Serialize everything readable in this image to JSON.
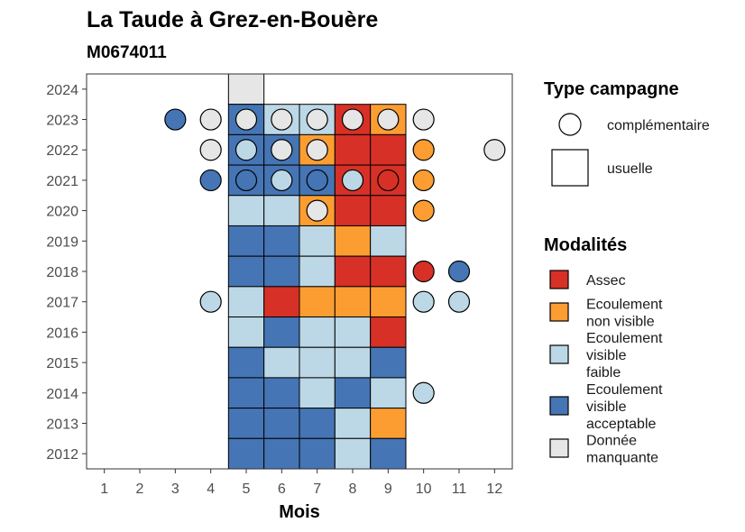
{
  "chart_data": {
    "type": "heatmap",
    "title": "La Taude à Grez-en-Bouère",
    "subtitle": "M0674011",
    "xlabel": "Mois",
    "ylabel": "",
    "x_ticks": [
      "1",
      "2",
      "3",
      "4",
      "5",
      "6",
      "7",
      "8",
      "9",
      "10",
      "11",
      "12"
    ],
    "y_ticks": [
      "2024",
      "2023",
      "2022",
      "2021",
      "2020",
      "2019",
      "2018",
      "2017",
      "2016",
      "2015",
      "2014",
      "2013",
      "2012"
    ],
    "xlim": [
      0.5,
      12.5
    ],
    "ylim": [
      2011.5,
      2024.5
    ],
    "grid": false,
    "legend_position": "right",
    "colors": {
      "Assec": "#d73027",
      "Ecoulement non visible": "#fc9d32",
      "Ecoulement visible faible": "#bcd8e6",
      "Ecoulement visible acceptable": "#4575b4",
      "Donnée manquante": "#e6e6e6"
    },
    "legend_shape": {
      "title": "Type campagne",
      "items": [
        {
          "key": "complementaire",
          "label": "complémentaire",
          "shape": "circle"
        },
        {
          "key": "usuelle",
          "label": "usuelle",
          "shape": "square"
        }
      ]
    },
    "legend_fill": {
      "title": "Modalités",
      "items": [
        {
          "key": "Assec",
          "lines": [
            "Assec"
          ]
        },
        {
          "key": "Ecoulement non visible",
          "lines": [
            "Ecoulement",
            "non visible"
          ]
        },
        {
          "key": "Ecoulement visible faible",
          "lines": [
            "Ecoulement",
            "visible",
            "faible"
          ]
        },
        {
          "key": "Ecoulement visible acceptable",
          "lines": [
            "Ecoulement",
            "visible",
            "acceptable"
          ]
        },
        {
          "key": "Donnée manquante",
          "lines": [
            "Donnée",
            "manquante"
          ]
        }
      ]
    },
    "usuelle": [
      {
        "year": 2024,
        "month": 5,
        "mod": "Donnée manquante"
      },
      {
        "year": 2023,
        "month": 5,
        "mod": "Ecoulement visible acceptable"
      },
      {
        "year": 2023,
        "month": 6,
        "mod": "Ecoulement visible faible"
      },
      {
        "year": 2023,
        "month": 7,
        "mod": "Ecoulement visible faible"
      },
      {
        "year": 2023,
        "month": 8,
        "mod": "Assec"
      },
      {
        "year": 2023,
        "month": 9,
        "mod": "Ecoulement non visible"
      },
      {
        "year": 2022,
        "month": 5,
        "mod": "Ecoulement visible acceptable"
      },
      {
        "year": 2022,
        "month": 6,
        "mod": "Ecoulement visible acceptable"
      },
      {
        "year": 2022,
        "month": 7,
        "mod": "Ecoulement non visible"
      },
      {
        "year": 2022,
        "month": 8,
        "mod": "Assec"
      },
      {
        "year": 2022,
        "month": 9,
        "mod": "Assec"
      },
      {
        "year": 2021,
        "month": 5,
        "mod": "Ecoulement visible acceptable"
      },
      {
        "year": 2021,
        "month": 6,
        "mod": "Ecoulement visible acceptable"
      },
      {
        "year": 2021,
        "month": 7,
        "mod": "Ecoulement visible acceptable"
      },
      {
        "year": 2021,
        "month": 8,
        "mod": "Assec"
      },
      {
        "year": 2021,
        "month": 9,
        "mod": "Assec"
      },
      {
        "year": 2020,
        "month": 5,
        "mod": "Ecoulement visible faible"
      },
      {
        "year": 2020,
        "month": 6,
        "mod": "Ecoulement visible faible"
      },
      {
        "year": 2020,
        "month": 7,
        "mod": "Ecoulement non visible"
      },
      {
        "year": 2020,
        "month": 8,
        "mod": "Assec"
      },
      {
        "year": 2020,
        "month": 9,
        "mod": "Assec"
      },
      {
        "year": 2019,
        "month": 5,
        "mod": "Ecoulement visible acceptable"
      },
      {
        "year": 2019,
        "month": 6,
        "mod": "Ecoulement visible acceptable"
      },
      {
        "year": 2019,
        "month": 7,
        "mod": "Ecoulement visible faible"
      },
      {
        "year": 2019,
        "month": 8,
        "mod": "Ecoulement non visible"
      },
      {
        "year": 2019,
        "month": 9,
        "mod": "Ecoulement visible faible"
      },
      {
        "year": 2018,
        "month": 5,
        "mod": "Ecoulement visible acceptable"
      },
      {
        "year": 2018,
        "month": 6,
        "mod": "Ecoulement visible acceptable"
      },
      {
        "year": 2018,
        "month": 7,
        "mod": "Ecoulement visible faible"
      },
      {
        "year": 2018,
        "month": 8,
        "mod": "Assec"
      },
      {
        "year": 2018,
        "month": 9,
        "mod": "Assec"
      },
      {
        "year": 2017,
        "month": 5,
        "mod": "Ecoulement visible faible"
      },
      {
        "year": 2017,
        "month": 6,
        "mod": "Assec"
      },
      {
        "year": 2017,
        "month": 7,
        "mod": "Ecoulement non visible"
      },
      {
        "year": 2017,
        "month": 8,
        "mod": "Ecoulement non visible"
      },
      {
        "year": 2017,
        "month": 9,
        "mod": "Ecoulement non visible"
      },
      {
        "year": 2016,
        "month": 5,
        "mod": "Ecoulement visible faible"
      },
      {
        "year": 2016,
        "month": 6,
        "mod": "Ecoulement visible acceptable"
      },
      {
        "year": 2016,
        "month": 7,
        "mod": "Ecoulement visible faible"
      },
      {
        "year": 2016,
        "month": 8,
        "mod": "Ecoulement visible faible"
      },
      {
        "year": 2016,
        "month": 9,
        "mod": "Assec"
      },
      {
        "year": 2015,
        "month": 5,
        "mod": "Ecoulement visible acceptable"
      },
      {
        "year": 2015,
        "month": 6,
        "mod": "Ecoulement visible faible"
      },
      {
        "year": 2015,
        "month": 7,
        "mod": "Ecoulement visible faible"
      },
      {
        "year": 2015,
        "month": 8,
        "mod": "Ecoulement visible faible"
      },
      {
        "year": 2015,
        "month": 9,
        "mod": "Ecoulement visible acceptable"
      },
      {
        "year": 2014,
        "month": 5,
        "mod": "Ecoulement visible acceptable"
      },
      {
        "year": 2014,
        "month": 6,
        "mod": "Ecoulement visible acceptable"
      },
      {
        "year": 2014,
        "month": 7,
        "mod": "Ecoulement visible faible"
      },
      {
        "year": 2014,
        "month": 8,
        "mod": "Ecoulement visible acceptable"
      },
      {
        "year": 2014,
        "month": 9,
        "mod": "Ecoulement visible faible"
      },
      {
        "year": 2013,
        "month": 5,
        "mod": "Ecoulement visible acceptable"
      },
      {
        "year": 2013,
        "month": 6,
        "mod": "Ecoulement visible acceptable"
      },
      {
        "year": 2013,
        "month": 7,
        "mod": "Ecoulement visible acceptable"
      },
      {
        "year": 2013,
        "month": 8,
        "mod": "Ecoulement visible faible"
      },
      {
        "year": 2013,
        "month": 9,
        "mod": "Ecoulement non visible"
      },
      {
        "year": 2012,
        "month": 5,
        "mod": "Ecoulement visible acceptable"
      },
      {
        "year": 2012,
        "month": 6,
        "mod": "Ecoulement visible acceptable"
      },
      {
        "year": 2012,
        "month": 7,
        "mod": "Ecoulement visible acceptable"
      },
      {
        "year": 2012,
        "month": 8,
        "mod": "Ecoulement visible faible"
      },
      {
        "year": 2012,
        "month": 9,
        "mod": "Ecoulement visible acceptable"
      }
    ],
    "complementaire": [
      {
        "year": 2023,
        "month": 3,
        "mod": "Ecoulement visible acceptable"
      },
      {
        "year": 2023,
        "month": 4,
        "mod": "Donnée manquante"
      },
      {
        "year": 2023,
        "month": 5,
        "mod": "Donnée manquante"
      },
      {
        "year": 2023,
        "month": 6,
        "mod": "Donnée manquante"
      },
      {
        "year": 2023,
        "month": 7,
        "mod": "Donnée manquante"
      },
      {
        "year": 2023,
        "month": 8,
        "mod": "Donnée manquante"
      },
      {
        "year": 2023,
        "month": 9,
        "mod": "Donnée manquante"
      },
      {
        "year": 2023,
        "month": 10,
        "mod": "Donnée manquante"
      },
      {
        "year": 2022,
        "month": 4,
        "mod": "Donnée manquante"
      },
      {
        "year": 2022,
        "month": 5,
        "mod": "Ecoulement visible faible"
      },
      {
        "year": 2022,
        "month": 6,
        "mod": "Donnée manquante"
      },
      {
        "year": 2022,
        "month": 7,
        "mod": "Donnée manquante"
      },
      {
        "year": 2022,
        "month": 10,
        "mod": "Ecoulement non visible"
      },
      {
        "year": 2022,
        "month": 12,
        "mod": "Donnée manquante"
      },
      {
        "year": 2021,
        "month": 4,
        "mod": "Ecoulement visible acceptable"
      },
      {
        "year": 2021,
        "month": 5,
        "mod": "Ecoulement visible acceptable"
      },
      {
        "year": 2021,
        "month": 6,
        "mod": "Ecoulement visible faible"
      },
      {
        "year": 2021,
        "month": 7,
        "mod": "Ecoulement visible acceptable"
      },
      {
        "year": 2021,
        "month": 8,
        "mod": "Ecoulement visible faible"
      },
      {
        "year": 2021,
        "month": 9,
        "mod": "Assec"
      },
      {
        "year": 2021,
        "month": 10,
        "mod": "Ecoulement non visible"
      },
      {
        "year": 2020,
        "month": 7,
        "mod": "Donnée manquante"
      },
      {
        "year": 2020,
        "month": 10,
        "mod": "Ecoulement non visible"
      },
      {
        "year": 2018,
        "month": 10,
        "mod": "Assec"
      },
      {
        "year": 2018,
        "month": 11,
        "mod": "Ecoulement visible acceptable"
      },
      {
        "year": 2017,
        "month": 4,
        "mod": "Ecoulement visible faible"
      },
      {
        "year": 2017,
        "month": 10,
        "mod": "Ecoulement visible faible"
      },
      {
        "year": 2017,
        "month": 11,
        "mod": "Ecoulement visible faible"
      },
      {
        "year": 2014,
        "month": 10,
        "mod": "Ecoulement visible faible"
      }
    ]
  }
}
